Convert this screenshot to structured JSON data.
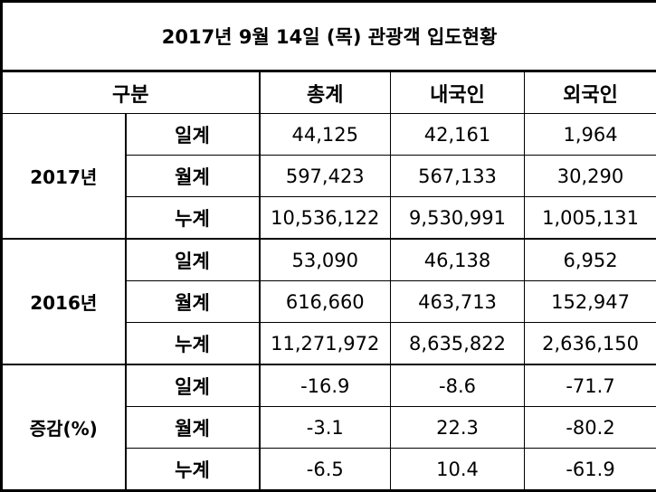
{
  "title": "2017년 9월 14일 (목) 관광객 입도현황",
  "headers": {
    "category": "구분",
    "total": "총계",
    "domestic": "내국인",
    "foreign": "외국인"
  },
  "groups": [
    {
      "label": "2017년",
      "rows": [
        {
          "label": "일계",
          "total": "44,125",
          "domestic": "42,161",
          "foreign": "1,964"
        },
        {
          "label": "월계",
          "total": "597,423",
          "domestic": "567,133",
          "foreign": "30,290"
        },
        {
          "label": "누계",
          "total": "10,536,122",
          "domestic": "9,530,991",
          "foreign": "1,005,131"
        }
      ]
    },
    {
      "label": "2016년",
      "rows": [
        {
          "label": "일계",
          "total": "53,090",
          "domestic": "46,138",
          "foreign": "6,952"
        },
        {
          "label": "월계",
          "total": "616,660",
          "domestic": "463,713",
          "foreign": "152,947"
        },
        {
          "label": "누계",
          "total": "11,271,972",
          "domestic": "8,635,822",
          "foreign": "2,636,150"
        }
      ]
    },
    {
      "label": "증감(%)",
      "rows": [
        {
          "label": "일계",
          "total": "-16.9",
          "domestic": "-8.6",
          "foreign": "-71.7"
        },
        {
          "label": "월계",
          "total": "-3.1",
          "domestic": "22.3",
          "foreign": "-80.2"
        },
        {
          "label": "누계",
          "total": "-6.5",
          "domestic": "10.4",
          "foreign": "-61.9"
        }
      ]
    }
  ]
}
